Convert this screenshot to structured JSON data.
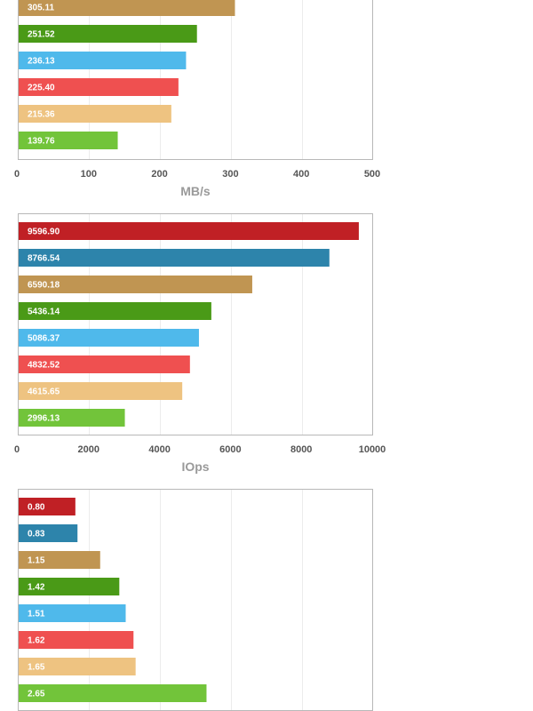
{
  "chart_data": [
    {
      "type": "bar",
      "orientation": "horizontal",
      "xlabel": "MB/s",
      "xlim": [
        0,
        500
      ],
      "xticks": [
        "0",
        "100",
        "200",
        "300",
        "400",
        "500"
      ],
      "grid": true,
      "visible_values": [
        305.11,
        251.52,
        236.13,
        225.4,
        215.36,
        139.76
      ],
      "value_labels": [
        "305.11",
        "251.52",
        "236.13",
        "225.40",
        "215.36",
        "139.76"
      ],
      "colors": [
        "#c09552",
        "#4a9a17",
        "#4fb9eb",
        "#ef5050",
        "#eec381",
        "#72c43a"
      ]
    },
    {
      "type": "bar",
      "orientation": "horizontal",
      "xlabel": "IOps",
      "xlim": [
        0,
        10000
      ],
      "xticks": [
        "0",
        "2000",
        "4000",
        "6000",
        "8000",
        "10000"
      ],
      "grid": true,
      "visible_values": [
        9596.9,
        8766.54,
        6590.18,
        5436.14,
        5086.37,
        4832.52,
        4615.65,
        2996.13
      ],
      "value_labels": [
        "9596.90",
        "8766.54",
        "6590.18",
        "5436.14",
        "5086.37",
        "4832.52",
        "4615.65",
        "2996.13"
      ],
      "colors": [
        "#c02025",
        "#2d84ab",
        "#c09552",
        "#4a9a17",
        "#4fb9eb",
        "#ef5050",
        "#eec381",
        "#72c43a"
      ]
    },
    {
      "type": "bar",
      "orientation": "horizontal",
      "xlim": [
        0,
        5
      ],
      "grid": true,
      "visible_values": [
        0.8,
        0.83,
        1.15,
        1.42,
        1.51,
        1.62,
        1.65,
        2.65
      ],
      "value_labels": [
        "0.80",
        "0.83",
        "1.15",
        "1.42",
        "1.51",
        "1.62",
        "1.65",
        "2.65"
      ],
      "colors": [
        "#c02025",
        "#2d84ab",
        "#c09552",
        "#4a9a17",
        "#4fb9eb",
        "#ef5050",
        "#eec381",
        "#72c43a"
      ]
    }
  ]
}
